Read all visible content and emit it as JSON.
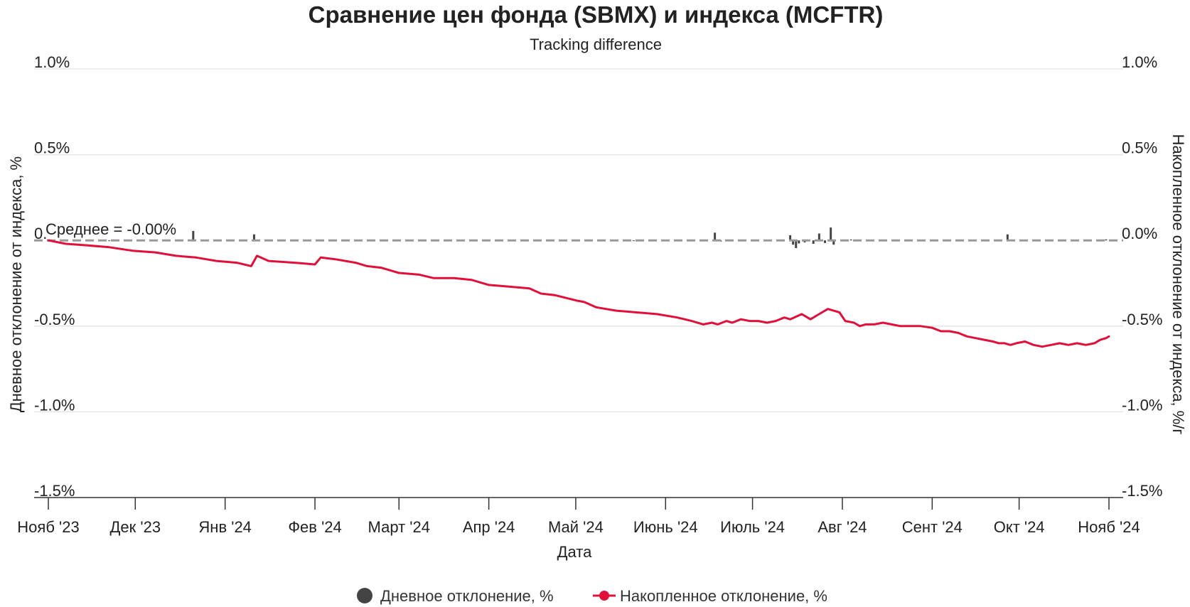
{
  "chart_data": {
    "type": "line",
    "title": "Сравнение цен фонда (SBMX) и индекса (MCFTR)",
    "subtitle": "Tracking difference",
    "xlabel": "Дата",
    "ylabel_left": "Дневное отклонение от индекса, %",
    "ylabel_right": "Накопленное отклонение от индекса, %/г",
    "ylim": [
      -1.5,
      1.0
    ],
    "y_ticks": [
      "1.0%",
      "0.5%",
      "0.0%",
      "-0.5%",
      "-1.0%",
      "-1.5%"
    ],
    "y_tick_values": [
      1.0,
      0.5,
      0.0,
      -0.5,
      -1.0,
      -1.5
    ],
    "x_range": [
      "2023-11-01",
      "2024-11-01"
    ],
    "x_ticks": [
      {
        "label": "Нояб '23",
        "date": "2023-11-01"
      },
      {
        "label": "Дек '23",
        "date": "2023-12-01"
      },
      {
        "label": "Янв '24",
        "date": "2024-01-01"
      },
      {
        "label": "Фев '24",
        "date": "2024-02-01"
      },
      {
        "label": "Март '24",
        "date": "2024-03-01"
      },
      {
        "label": "Апр '24",
        "date": "2024-04-01"
      },
      {
        "label": "Май '24",
        "date": "2024-05-01"
      },
      {
        "label": "Июнь '24",
        "date": "2024-06-01"
      },
      {
        "label": "Июль '24",
        "date": "2024-07-01"
      },
      {
        "label": "Авг '24",
        "date": "2024-08-01"
      },
      {
        "label": "Сент '24",
        "date": "2024-09-01"
      },
      {
        "label": "Окт '24",
        "date": "2024-10-01"
      },
      {
        "label": "Нояб '24",
        "date": "2024-11-01"
      }
    ],
    "mean_label": "Среднее = -0.00%",
    "mean_value": 0.0,
    "legend_position": "bottom",
    "grid": true,
    "series": [
      {
        "name": "Дневное отклонение, %",
        "type": "bar",
        "color": "#444444",
        "points": [
          [
            "2023-11-22",
            -0.002
          ],
          [
            "2023-12-21",
            0.055
          ],
          [
            "2024-01-11",
            0.035
          ],
          [
            "2024-05-21",
            -0.003
          ],
          [
            "2024-06-18",
            0.045
          ],
          [
            "2024-06-20",
            -0.006
          ],
          [
            "2024-07-14",
            0.03
          ],
          [
            "2024-07-15",
            -0.025
          ],
          [
            "2024-07-16",
            -0.045
          ],
          [
            "2024-07-17",
            -0.018
          ],
          [
            "2024-07-19",
            -0.012
          ],
          [
            "2024-07-22",
            -0.02
          ],
          [
            "2024-07-24",
            0.04
          ],
          [
            "2024-07-26",
            -0.015
          ],
          [
            "2024-07-28",
            0.075
          ],
          [
            "2024-07-29",
            -0.025
          ],
          [
            "2024-08-04",
            0.005
          ],
          [
            "2024-09-27",
            0.035
          ],
          [
            "2024-10-20",
            -0.004
          ],
          [
            "2024-10-31",
            0.006
          ]
        ]
      },
      {
        "name": "Накопленное отклонение, %",
        "type": "line",
        "color": "#e0103a",
        "points": [
          [
            "2023-11-01",
            0.0
          ],
          [
            "2023-11-07",
            -0.02
          ],
          [
            "2023-11-15",
            -0.03
          ],
          [
            "2023-11-22",
            -0.04
          ],
          [
            "2023-11-30",
            -0.06
          ],
          [
            "2023-12-08",
            -0.07
          ],
          [
            "2023-12-15",
            -0.09
          ],
          [
            "2023-12-22",
            -0.1
          ],
          [
            "2023-12-29",
            -0.12
          ],
          [
            "2024-01-05",
            -0.13
          ],
          [
            "2024-01-10",
            -0.15
          ],
          [
            "2024-01-12",
            -0.09
          ],
          [
            "2024-01-16",
            -0.12
          ],
          [
            "2024-01-25",
            -0.13
          ],
          [
            "2024-02-01",
            -0.14
          ],
          [
            "2024-02-03",
            -0.1
          ],
          [
            "2024-02-08",
            -0.11
          ],
          [
            "2024-02-15",
            -0.13
          ],
          [
            "2024-02-19",
            -0.15
          ],
          [
            "2024-02-24",
            -0.16
          ],
          [
            "2024-03-01",
            -0.19
          ],
          [
            "2024-03-08",
            -0.2
          ],
          [
            "2024-03-13",
            -0.22
          ],
          [
            "2024-03-20",
            -0.22
          ],
          [
            "2024-03-26",
            -0.23
          ],
          [
            "2024-04-01",
            -0.26
          ],
          [
            "2024-04-08",
            -0.27
          ],
          [
            "2024-04-15",
            -0.28
          ],
          [
            "2024-04-19",
            -0.31
          ],
          [
            "2024-04-24",
            -0.32
          ],
          [
            "2024-05-01",
            -0.35
          ],
          [
            "2024-05-04",
            -0.36
          ],
          [
            "2024-05-08",
            -0.39
          ],
          [
            "2024-05-15",
            -0.41
          ],
          [
            "2024-05-22",
            -0.42
          ],
          [
            "2024-05-29",
            -0.43
          ],
          [
            "2024-06-05",
            -0.45
          ],
          [
            "2024-06-10",
            -0.47
          ],
          [
            "2024-06-14",
            -0.49
          ],
          [
            "2024-06-17",
            -0.48
          ],
          [
            "2024-06-19",
            -0.49
          ],
          [
            "2024-06-22",
            -0.47
          ],
          [
            "2024-06-24",
            -0.48
          ],
          [
            "2024-06-27",
            -0.46
          ],
          [
            "2024-06-30",
            -0.47
          ],
          [
            "2024-07-03",
            -0.47
          ],
          [
            "2024-07-06",
            -0.48
          ],
          [
            "2024-07-09",
            -0.47
          ],
          [
            "2024-07-12",
            -0.45
          ],
          [
            "2024-07-14",
            -0.46
          ],
          [
            "2024-07-18",
            -0.43
          ],
          [
            "2024-07-21",
            -0.46
          ],
          [
            "2024-07-24",
            -0.43
          ],
          [
            "2024-07-27",
            -0.4
          ],
          [
            "2024-07-29",
            -0.41
          ],
          [
            "2024-07-31",
            -0.42
          ],
          [
            "2024-08-02",
            -0.47
          ],
          [
            "2024-08-05",
            -0.48
          ],
          [
            "2024-08-07",
            -0.5
          ],
          [
            "2024-08-09",
            -0.49
          ],
          [
            "2024-08-12",
            -0.49
          ],
          [
            "2024-08-15",
            -0.48
          ],
          [
            "2024-08-18",
            -0.49
          ],
          [
            "2024-08-21",
            -0.5
          ],
          [
            "2024-08-25",
            -0.5
          ],
          [
            "2024-08-28",
            -0.5
          ],
          [
            "2024-09-01",
            -0.51
          ],
          [
            "2024-09-04",
            -0.53
          ],
          [
            "2024-09-07",
            -0.53
          ],
          [
            "2024-09-10",
            -0.54
          ],
          [
            "2024-09-13",
            -0.56
          ],
          [
            "2024-09-16",
            -0.57
          ],
          [
            "2024-09-19",
            -0.58
          ],
          [
            "2024-09-22",
            -0.59
          ],
          [
            "2024-09-24",
            -0.6
          ],
          [
            "2024-09-26",
            -0.6
          ],
          [
            "2024-09-28",
            -0.61
          ],
          [
            "2024-09-30",
            -0.6
          ],
          [
            "2024-10-03",
            -0.59
          ],
          [
            "2024-10-06",
            -0.61
          ],
          [
            "2024-10-09",
            -0.62
          ],
          [
            "2024-10-12",
            -0.61
          ],
          [
            "2024-10-15",
            -0.6
          ],
          [
            "2024-10-18",
            -0.61
          ],
          [
            "2024-10-21",
            -0.6
          ],
          [
            "2024-10-24",
            -0.61
          ],
          [
            "2024-10-27",
            -0.6
          ],
          [
            "2024-10-29",
            -0.58
          ],
          [
            "2024-10-31",
            -0.57
          ],
          [
            "2024-11-01",
            -0.56
          ]
        ]
      }
    ]
  }
}
